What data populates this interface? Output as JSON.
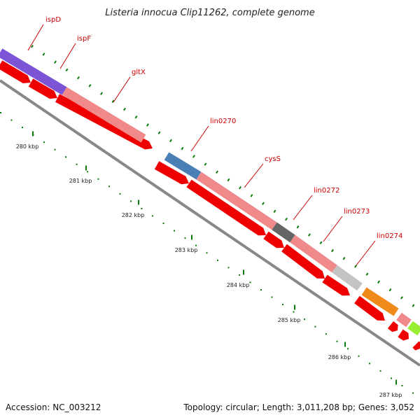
{
  "title": "Listeria innocua Clip11262, complete genome",
  "footer": {
    "accession": "Accession: NC_003212",
    "summary": "Topology: circular; Length: 3,011,208 bp; Genes: 3,052"
  },
  "genes": [
    {
      "name": "ispD",
      "color": "#7b55d6"
    },
    {
      "name": "ispF",
      "color": "#7b55d6"
    },
    {
      "name": "gltX",
      "color": "#f08a8a"
    },
    {
      "name": "lin0270",
      "color": "#4a7fb5"
    },
    {
      "name": "cysS",
      "color": "#f08a8a"
    },
    {
      "name": "lin0272",
      "color": "#666666"
    },
    {
      "name": "lin0273",
      "color": "#f08a8a"
    },
    {
      "name": "lin0274",
      "color": "#c4c4c4"
    },
    {
      "name": "",
      "color": "#f08a1a"
    },
    {
      "name": "",
      "color": "#f08a8a"
    },
    {
      "name": "",
      "color": "#99ee33"
    }
  ],
  "ticks": [
    "280 kbp",
    "281 kbp",
    "282 kbp",
    "283 kbp",
    "284 kbp",
    "285 kbp",
    "286 kbp",
    "287 kbp"
  ],
  "colors": {
    "cds": "#ee0000",
    "backbone": "#888888",
    "tick": "#0a7a0a",
    "label": "#cc0000"
  }
}
